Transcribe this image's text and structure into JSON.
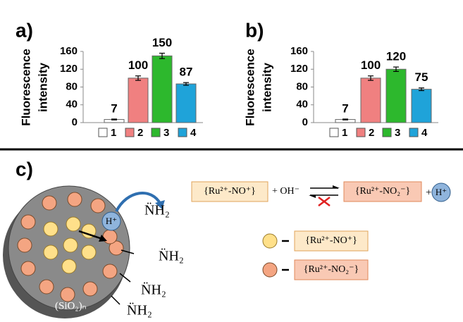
{
  "chart_data": [
    {
      "type": "bar",
      "panel": "a)",
      "ylabel_lines": [
        "Fluorescence",
        "intensity"
      ],
      "categories": [
        "1",
        "2",
        "3",
        "4"
      ],
      "values": [
        7,
        100,
        150,
        87
      ],
      "errors": [
        1,
        5,
        6,
        3
      ],
      "colors": [
        "#ffffff",
        "#f08080",
        "#2db82d",
        "#1fa3d9"
      ],
      "ylim": [
        0,
        160
      ],
      "yticks": [
        0,
        40,
        80,
        120,
        160
      ]
    },
    {
      "type": "bar",
      "panel": "b)",
      "ylabel_lines": [
        "Fluorescence",
        "intensity"
      ],
      "categories": [
        "1",
        "2",
        "3",
        "4"
      ],
      "values": [
        7,
        100,
        120,
        75
      ],
      "errors": [
        1,
        5,
        5,
        3
      ],
      "colors": [
        "#ffffff",
        "#f08080",
        "#2db82d",
        "#1fa3d9"
      ],
      "ylim": [
        0,
        160
      ],
      "yticks": [
        0,
        40,
        80,
        120,
        160
      ]
    }
  ],
  "diagram": {
    "panel": "c)",
    "support": "(SiO₂)ₙ",
    "proton": "H⁺",
    "amines": [
      "N̈H₂",
      "N̈H₂",
      "N̈H₂",
      "N̈H₂"
    ],
    "equation": {
      "reactant": "{Ru²⁺-NO⁺}",
      "reagent": "+ OH⁻",
      "product": "{Ru²⁺-NO₂⁻}",
      "plus": "+",
      "proton": "H⁺"
    },
    "legend": [
      "{Ru²⁺-NO⁺}",
      "{Ru²⁺-NO₂⁻}"
    ]
  }
}
